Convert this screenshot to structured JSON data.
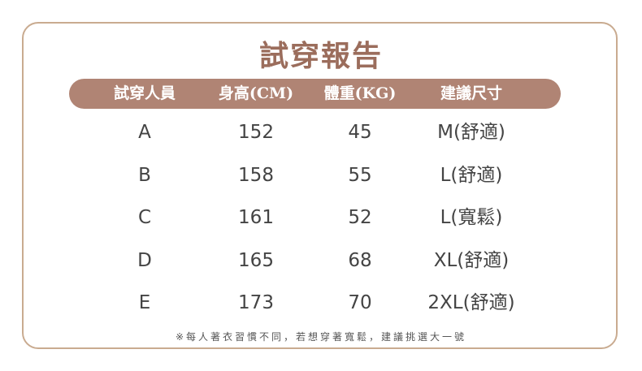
{
  "title": "試穿報告",
  "table": {
    "header": [
      "試穿人員",
      "身高(CM)",
      "體重(KG)",
      "建議尺寸"
    ],
    "rows": [
      [
        "A",
        152,
        45,
        "M(舒適)"
      ],
      [
        "B",
        158,
        55,
        "L(舒適)"
      ],
      [
        "C",
        161,
        52,
        "L(寬鬆)"
      ],
      [
        "D",
        165,
        68,
        "XL(舒適)"
      ],
      [
        "E",
        173,
        70,
        "2XL(舒適)"
      ]
    ]
  },
  "note": "※每人著衣習慣不同，若想穿著寬鬆，建議挑選大一號"
}
